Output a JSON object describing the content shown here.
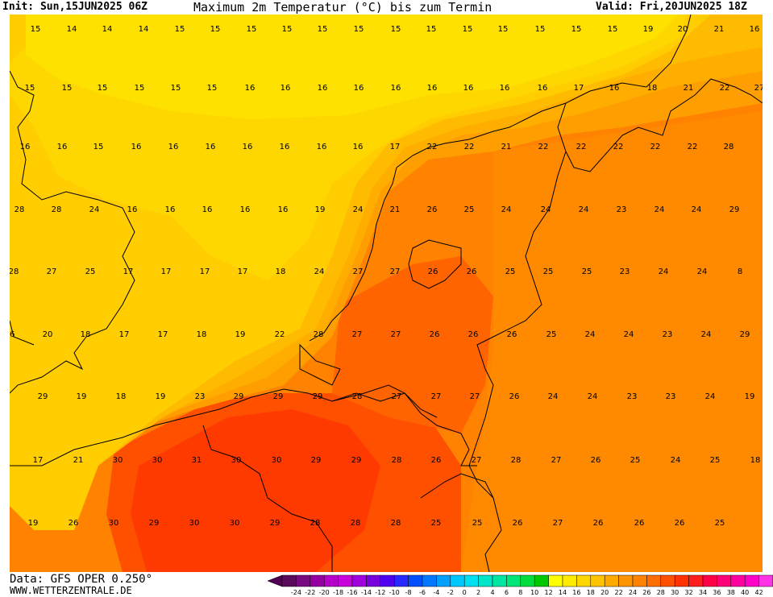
{
  "header": {
    "init": "Init: Sun,15JUN2025 06Z",
    "title": "Maximum 2m Temperatur (°C) bis zum Termin",
    "valid": "Valid: Fri,20JUN2025 18Z"
  },
  "footer": {
    "data_source": "Data: GFS OPER 0.250°",
    "website": "WWW.WETTERZENTRALE.DE"
  },
  "colorbar": {
    "labels": [
      "-24",
      "-22",
      "-20",
      "-18",
      "-16",
      "-14",
      "-12",
      "-10",
      "-8",
      "-6",
      "-4",
      "-2",
      "0",
      "2",
      "4",
      "6",
      "8",
      "10",
      "12",
      "14",
      "16",
      "18",
      "20",
      "22",
      "24",
      "26",
      "28",
      "30",
      "32",
      "34",
      "36",
      "38",
      "40",
      "42"
    ],
    "colors": [
      "#5a0a5a",
      "#780a82",
      "#9600a0",
      "#b400c8",
      "#c800dc",
      "#a000dc",
      "#7800dc",
      "#5000f0",
      "#2828ff",
      "#0050ff",
      "#0078ff",
      "#00a0ff",
      "#00c8ff",
      "#00e0f0",
      "#00e6c8",
      "#00e6a0",
      "#00e678",
      "#00dc3c",
      "#00c800",
      "#ffff00",
      "#ffeb00",
      "#ffd700",
      "#ffc300",
      "#ffaa00",
      "#ff9600",
      "#ff8200",
      "#ff6e00",
      "#ff5000",
      "#ff3200",
      "#ff1e1e",
      "#ff0046",
      "#ff0078",
      "#ff00a0",
      "#ff00c8",
      "#ff32e6"
    ],
    "under_color": "#500050",
    "over_color": "#ff40e0"
  },
  "legend_colors": {
    "t15": "#ffe100",
    "t17": "#ffcd00",
    "t20": "#ffae00",
    "t22": "#ff9600",
    "t24": "#ff8200",
    "t27": "#ff6400",
    "t29": "#ff4a00"
  },
  "temperatures": [
    {
      "v": "15"
    },
    {
      "v": "14"
    },
    {
      "v": "14"
    },
    {
      "v": "14"
    },
    {
      "v": "15"
    },
    {
      "v": "15"
    },
    {
      "v": "15"
    },
    {
      "v": "15"
    },
    {
      "v": "15"
    },
    {
      "v": "15"
    },
    {
      "v": "15"
    },
    {
      "v": "15"
    },
    {
      "v": "15"
    },
    {
      "v": "15"
    },
    {
      "v": "15"
    },
    {
      "v": "15"
    },
    {
      "v": "15"
    },
    {
      "v": "19"
    },
    {
      "v": "20"
    },
    {
      "v": "21"
    },
    {
      "v": "16"
    },
    {
      "v": "15"
    },
    {
      "v": "15"
    },
    {
      "v": "15"
    },
    {
      "v": "15"
    },
    {
      "v": "15"
    },
    {
      "v": "15"
    },
    {
      "v": "16"
    },
    {
      "v": "16"
    },
    {
      "v": "16"
    },
    {
      "v": "16"
    },
    {
      "v": "16"
    },
    {
      "v": "16"
    },
    {
      "v": "16"
    },
    {
      "v": "16"
    },
    {
      "v": "16"
    },
    {
      "v": "17"
    },
    {
      "v": "16"
    },
    {
      "v": "18"
    },
    {
      "v": "21"
    },
    {
      "v": "22"
    },
    {
      "v": "27"
    },
    {
      "v": "16"
    },
    {
      "v": "16"
    },
    {
      "v": "15"
    },
    {
      "v": "16"
    },
    {
      "v": "16"
    },
    {
      "v": "16"
    },
    {
      "v": "16"
    },
    {
      "v": "16"
    },
    {
      "v": "16"
    },
    {
      "v": "16"
    },
    {
      "v": "17"
    },
    {
      "v": "22"
    },
    {
      "v": "22"
    },
    {
      "v": "21"
    },
    {
      "v": "22"
    },
    {
      "v": "22"
    },
    {
      "v": "22"
    },
    {
      "v": "22"
    },
    {
      "v": "22"
    },
    {
      "v": "28"
    },
    {
      "v": "28"
    },
    {
      "v": "28"
    },
    {
      "v": "24"
    },
    {
      "v": "16"
    },
    {
      "v": "16"
    },
    {
      "v": "16"
    },
    {
      "v": "16"
    },
    {
      "v": "16"
    },
    {
      "v": "19"
    },
    {
      "v": "24"
    },
    {
      "v": "21"
    },
    {
      "v": "26"
    },
    {
      "v": "25"
    },
    {
      "v": "24"
    },
    {
      "v": "24"
    },
    {
      "v": "24"
    },
    {
      "v": "23"
    },
    {
      "v": "24"
    },
    {
      "v": "24"
    },
    {
      "v": "29"
    },
    {
      "v": "28"
    },
    {
      "v": "27"
    },
    {
      "v": "25"
    },
    {
      "v": "17"
    },
    {
      "v": "17"
    },
    {
      "v": "17"
    },
    {
      "v": "17"
    },
    {
      "v": "18"
    },
    {
      "v": "24"
    },
    {
      "v": "27"
    },
    {
      "v": "27"
    },
    {
      "v": "26"
    },
    {
      "v": "26"
    },
    {
      "v": "25"
    },
    {
      "v": "25"
    },
    {
      "v": "25"
    },
    {
      "v": "23"
    },
    {
      "v": "24"
    },
    {
      "v": "24"
    },
    {
      "v": "8"
    },
    {
      "v": "26"
    },
    {
      "v": "20"
    },
    {
      "v": "18"
    },
    {
      "v": "17"
    },
    {
      "v": "17"
    },
    {
      "v": "18"
    },
    {
      "v": "19"
    },
    {
      "v": "22"
    },
    {
      "v": "28"
    },
    {
      "v": "27"
    },
    {
      "v": "27"
    },
    {
      "v": "26"
    },
    {
      "v": "26"
    },
    {
      "v": "26"
    },
    {
      "v": "25"
    },
    {
      "v": "24"
    },
    {
      "v": "24"
    },
    {
      "v": "23"
    },
    {
      "v": "24"
    },
    {
      "v": "29"
    },
    {
      "v": "29"
    },
    {
      "v": "19"
    },
    {
      "v": "18"
    },
    {
      "v": "19"
    },
    {
      "v": "23"
    },
    {
      "v": "29"
    },
    {
      "v": "29"
    },
    {
      "v": "29"
    },
    {
      "v": "28"
    },
    {
      "v": "27"
    },
    {
      "v": "27"
    },
    {
      "v": "27"
    },
    {
      "v": "26"
    },
    {
      "v": "24"
    },
    {
      "v": "24"
    },
    {
      "v": "23"
    },
    {
      "v": "23"
    },
    {
      "v": "24"
    },
    {
      "v": "19"
    },
    {
      "v": "17"
    },
    {
      "v": "21"
    },
    {
      "v": "30"
    },
    {
      "v": "30"
    },
    {
      "v": "31"
    },
    {
      "v": "30"
    },
    {
      "v": "30"
    },
    {
      "v": "29"
    },
    {
      "v": "29"
    },
    {
      "v": "28"
    },
    {
      "v": "26"
    },
    {
      "v": "27"
    },
    {
      "v": "28"
    },
    {
      "v": "27"
    },
    {
      "v": "26"
    },
    {
      "v": "25"
    },
    {
      "v": "24"
    },
    {
      "v": "25"
    },
    {
      "v": "18"
    },
    {
      "v": "19"
    },
    {
      "v": "26"
    },
    {
      "v": "30"
    },
    {
      "v": "29"
    },
    {
      "v": "30"
    },
    {
      "v": "30"
    },
    {
      "v": "29"
    },
    {
      "v": "28"
    },
    {
      "v": "28"
    },
    {
      "v": "28"
    },
    {
      "v": "25"
    },
    {
      "v": "25"
    },
    {
      "v": "26"
    },
    {
      "v": "27"
    },
    {
      "v": "26"
    },
    {
      "v": "26"
    },
    {
      "v": "26"
    },
    {
      "v": "25"
    }
  ]
}
